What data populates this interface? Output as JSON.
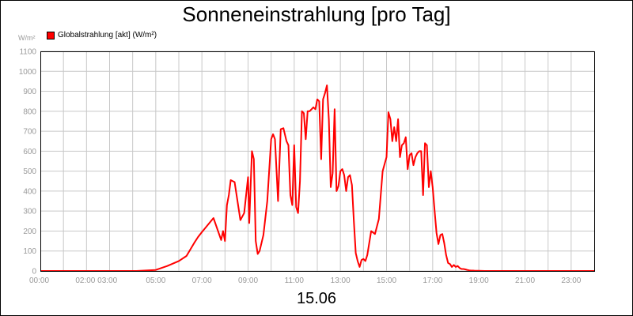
{
  "chart_data": {
    "type": "line",
    "title": "Sonneneinstrahlung [pro Tag]",
    "xlabel": "15.06",
    "ylabel": "W/m²",
    "ylim": [
      0,
      1100
    ],
    "xlim": [
      "00:00",
      "24:00"
    ],
    "grid": true,
    "legend_position": "top-left",
    "y_ticks": [
      0,
      100,
      200,
      300,
      400,
      500,
      600,
      700,
      800,
      900,
      1000,
      1100
    ],
    "x_tick_labels": [
      "00:00",
      "02:00 03:00",
      "05:00",
      "07:00",
      "09:00",
      "11:00",
      "13:00",
      "15:00",
      "17:00",
      "19:00",
      "21:00",
      "23:00"
    ],
    "x_tick_times": [
      "00:00",
      "02:00",
      "05:00",
      "07:00",
      "09:00",
      "11:00",
      "13:00",
      "15:00",
      "17:00",
      "19:00",
      "21:00",
      "23:00"
    ],
    "series": [
      {
        "name": "Globalstrahlung [akt] (W/m²)",
        "color": "#ff0000",
        "x": [
          "00:00",
          "04:10",
          "05:00",
          "05:30",
          "06:00",
          "06:20",
          "06:40",
          "06:50",
          "07:00",
          "07:30",
          "07:50",
          "07:55",
          "08:00",
          "08:05",
          "08:10",
          "08:15",
          "08:25",
          "08:40",
          "08:50",
          "09:00",
          "09:03",
          "09:10",
          "09:15",
          "09:20",
          "09:25",
          "09:30",
          "09:40",
          "09:50",
          "10:00",
          "10:05",
          "10:10",
          "10:18",
          "10:25",
          "10:32",
          "10:40",
          "10:45",
          "10:50",
          "10:55",
          "11:00",
          "11:05",
          "11:10",
          "11:15",
          "11:20",
          "11:25",
          "11:30",
          "11:35",
          "11:40",
          "11:45",
          "11:50",
          "11:55",
          "12:00",
          "12:05",
          "12:10",
          "12:15",
          "12:20",
          "12:25",
          "12:30",
          "12:35",
          "12:40",
          "12:45",
          "12:50",
          "12:55",
          "13:00",
          "13:05",
          "13:10",
          "13:15",
          "13:20",
          "13:25",
          "13:30",
          "13:35",
          "13:40",
          "13:45",
          "13:50",
          "13:55",
          "14:00",
          "14:05",
          "14:10",
          "14:20",
          "14:30",
          "14:40",
          "14:50",
          "15:00",
          "15:05",
          "15:10",
          "15:15",
          "15:20",
          "15:25",
          "15:30",
          "15:35",
          "15:40",
          "15:45",
          "15:50",
          "15:55",
          "16:00",
          "16:05",
          "16:10",
          "16:15",
          "16:20",
          "16:25",
          "16:30",
          "16:35",
          "16:40",
          "16:45",
          "16:50",
          "16:55",
          "17:00",
          "17:05",
          "17:10",
          "17:15",
          "17:20",
          "17:25",
          "17:30",
          "17:35",
          "17:40",
          "17:45",
          "17:50",
          "17:55",
          "18:00",
          "18:05",
          "18:10",
          "18:15",
          "18:20",
          "18:25",
          "18:30",
          "18:35",
          "18:40",
          "18:45",
          "18:50",
          "18:55",
          "19:00",
          "19:15",
          "19:30",
          "20:00",
          "20:30",
          "21:00",
          "22:00",
          "23:00",
          "24:00"
        ],
        "values": [
          0,
          0,
          5,
          25,
          50,
          75,
          140,
          170,
          195,
          265,
          155,
          200,
          150,
          330,
          380,
          455,
          445,
          255,
          290,
          470,
          240,
          600,
          560,
          150,
          85,
          100,
          180,
          350,
          660,
          685,
          660,
          350,
          710,
          715,
          650,
          630,
          380,
          330,
          630,
          320,
          290,
          450,
          800,
          790,
          660,
          800,
          800,
          810,
          820,
          810,
          860,
          850,
          560,
          860,
          890,
          930,
          760,
          420,
          490,
          810,
          400,
          425,
          500,
          510,
          480,
          400,
          470,
          480,
          430,
          250,
          90,
          50,
          20,
          55,
          60,
          50,
          80,
          200,
          185,
          260,
          500,
          570,
          795,
          760,
          650,
          720,
          650,
          760,
          570,
          630,
          640,
          670,
          510,
          580,
          590,
          530,
          570,
          590,
          600,
          600,
          380,
          640,
          630,
          420,
          500,
          420,
          300,
          190,
          135,
          180,
          185,
          140,
          80,
          40,
          35,
          20,
          30,
          20,
          25,
          15,
          10,
          10,
          8,
          5,
          3,
          2,
          2,
          1,
          1,
          1,
          0,
          0,
          0,
          0,
          0,
          0,
          0,
          0
        ]
      }
    ]
  }
}
